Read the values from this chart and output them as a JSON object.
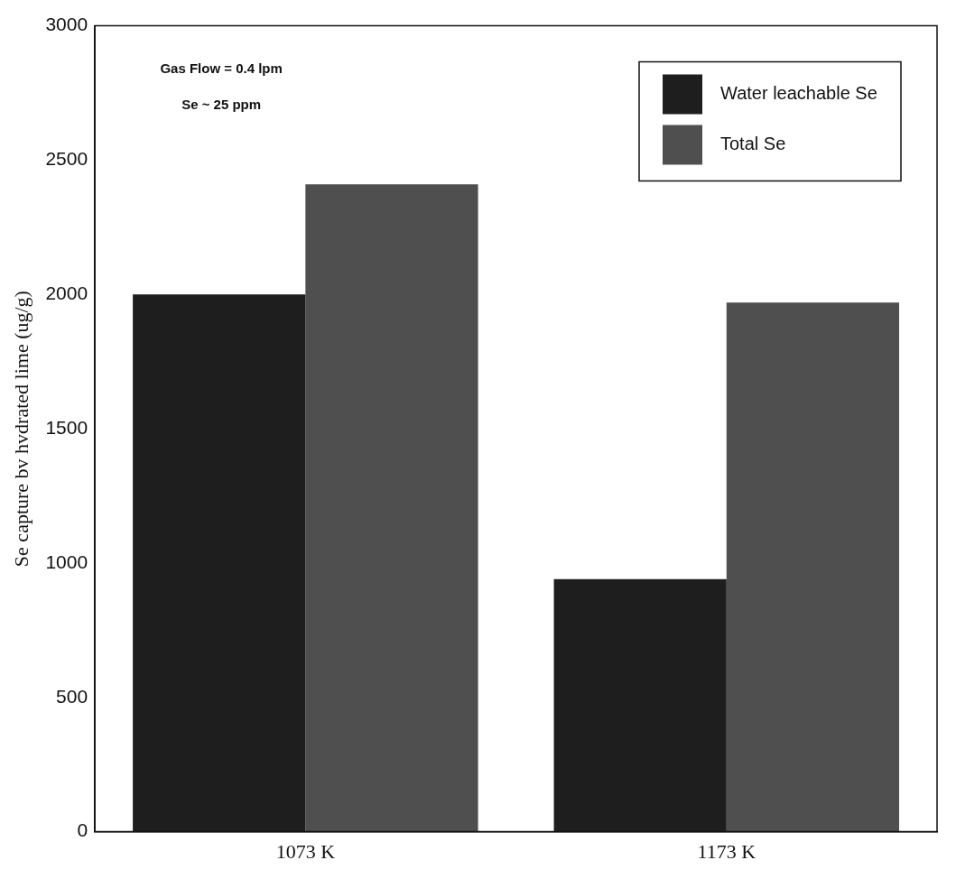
{
  "chart_data": {
    "type": "bar",
    "ylabel": "Se capture bv hvdrated lime (ug/g)",
    "categories": [
      "1073 K",
      "1173 K"
    ],
    "series": [
      {
        "name": "Water leachable Se",
        "color": "#1e1e1e",
        "values": [
          2000,
          940
        ]
      },
      {
        "name": "Total Se",
        "color": "#4f4f4f",
        "values": [
          2410,
          1970
        ]
      }
    ],
    "ylim": [
      0,
      3000
    ],
    "yticks": [
      0,
      500,
      1000,
      1500,
      2000,
      2500,
      3000
    ],
    "annotations": [
      "Gas Flow = 0.4 lpm",
      "Se ~ 25 ppm"
    ],
    "grid": false,
    "legend": "top right"
  }
}
